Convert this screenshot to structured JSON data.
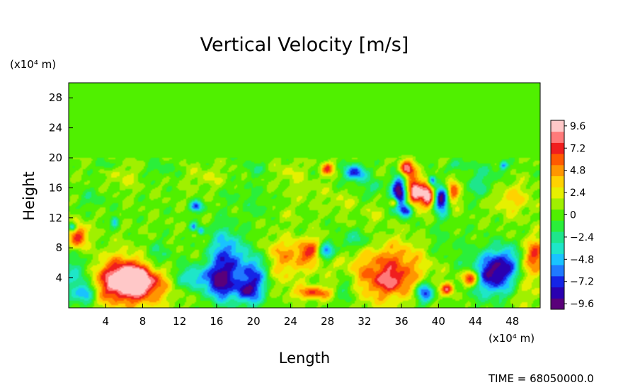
{
  "chart_data": {
    "type": "heatmap",
    "title": "Vertical Velocity [m/s]",
    "xlabel": "Length",
    "ylabel": "Height",
    "x_unit": "(x10⁴ m)",
    "y_unit": "(x10⁴ m)",
    "xlim": [
      0,
      51
    ],
    "ylim": [
      0,
      30
    ],
    "x_ticks": [
      4,
      8,
      12,
      16,
      20,
      24,
      28,
      32,
      36,
      40,
      44,
      48
    ],
    "y_ticks": [
      4,
      8,
      12,
      16,
      20,
      24,
      28
    ],
    "value_range": [
      -10.2,
      10.2
    ],
    "colorbar_ticks": [
      9.6,
      7.2,
      4.8,
      2.4,
      0,
      -2.4,
      -4.8,
      -7.2,
      -9.6
    ],
    "colormap": [
      "#5a007a",
      "#2a00b0",
      "#1424e6",
      "#1f7aff",
      "#19c3ff",
      "#1ee6c8",
      "#1ee68c",
      "#2aef3a",
      "#50f000",
      "#a0f000",
      "#e6f000",
      "#ffd200",
      "#ff9600",
      "#ff5a00",
      "#f01e1e",
      "#ff7a7a",
      "#ffc8c8"
    ],
    "background_value": 0.3,
    "features": [
      {
        "x": 6.5,
        "y": 3.5,
        "sx": 2.8,
        "sy": 2.2,
        "v": 10.5
      },
      {
        "x": 7.0,
        "y": 3.8,
        "sx": 1.6,
        "sy": 1.3,
        "v": 3.5
      },
      {
        "x": 1.0,
        "y": 3.5,
        "sx": 1.2,
        "sy": 2.5,
        "v": -5.0
      },
      {
        "x": 2.0,
        "y": 2.0,
        "sx": 0.7,
        "sy": 0.7,
        "v": -5.0
      },
      {
        "x": 1.0,
        "y": 9.5,
        "sx": 0.7,
        "sy": 1.2,
        "v": 7.5
      },
      {
        "x": 0.4,
        "y": 10.8,
        "sx": 0.3,
        "sy": 0.4,
        "v": -7.0
      },
      {
        "x": 13.5,
        "y": 4.0,
        "sx": 1.5,
        "sy": 1.2,
        "v": -5.5
      },
      {
        "x": 17.0,
        "y": 6.0,
        "sx": 1.2,
        "sy": 3.0,
        "v": -8.0
      },
      {
        "x": 16.3,
        "y": 3.0,
        "sx": 0.8,
        "sy": 1.5,
        "v": -6.0
      },
      {
        "x": 20.0,
        "y": 4.0,
        "sx": 1.0,
        "sy": 2.5,
        "v": -7.5
      },
      {
        "x": 19.0,
        "y": 2.2,
        "sx": 0.8,
        "sy": 1.0,
        "v": -5.0
      },
      {
        "x": 9.5,
        "y": 6.5,
        "sx": 1.3,
        "sy": 1.5,
        "v": -3.5
      },
      {
        "x": 23.5,
        "y": 6.0,
        "sx": 1.5,
        "sy": 2.0,
        "v": 3.5
      },
      {
        "x": 22.0,
        "y": 8.0,
        "sx": 1.5,
        "sy": 1.0,
        "v": 1.5
      },
      {
        "x": 26.5,
        "y": 7.5,
        "sx": 1.3,
        "sy": 1.2,
        "v": 6.5
      },
      {
        "x": 27.8,
        "y": 7.5,
        "sx": 0.7,
        "sy": 0.8,
        "v": -10.0
      },
      {
        "x": 26.5,
        "y": 2.0,
        "sx": 1.5,
        "sy": 0.6,
        "v": 6.0
      },
      {
        "x": 30.0,
        "y": 2.5,
        "sx": 1.0,
        "sy": 1.5,
        "v": -3.5
      },
      {
        "x": 34.0,
        "y": 4.0,
        "sx": 3.0,
        "sy": 2.5,
        "v": 5.5
      },
      {
        "x": 35.0,
        "y": 3.5,
        "sx": 1.2,
        "sy": 1.0,
        "v": 2.5
      },
      {
        "x": 36.5,
        "y": 7.0,
        "sx": 3.0,
        "sy": 2.0,
        "v": 2.5
      },
      {
        "x": 31.0,
        "y": 9.0,
        "sx": 1.5,
        "sy": 1.0,
        "v": -3.0
      },
      {
        "x": 38.5,
        "y": 2.0,
        "sx": 0.7,
        "sy": 1.0,
        "v": -8.0
      },
      {
        "x": 41.0,
        "y": 2.5,
        "sx": 0.5,
        "sy": 0.6,
        "v": 7.0
      },
      {
        "x": 43.5,
        "y": 4.0,
        "sx": 0.7,
        "sy": 0.8,
        "v": 9.0
      },
      {
        "x": 46.0,
        "y": 4.5,
        "sx": 1.8,
        "sy": 2.0,
        "v": -9.5
      },
      {
        "x": 47.5,
        "y": 6.5,
        "sx": 1.0,
        "sy": 1.5,
        "v": -4.0
      },
      {
        "x": 49.5,
        "y": 4.0,
        "sx": 1.5,
        "sy": 3.0,
        "v": 2.5
      },
      {
        "x": 50.5,
        "y": 7.0,
        "sx": 0.8,
        "sy": 1.5,
        "v": 5.5
      },
      {
        "x": 40.0,
        "y": 8.0,
        "sx": 2.0,
        "sy": 2.0,
        "v": -2.0
      },
      {
        "x": 31.0,
        "y": 18.0,
        "sx": 0.8,
        "sy": 0.8,
        "v": -8.0
      },
      {
        "x": 28.0,
        "y": 18.5,
        "sx": 0.5,
        "sy": 0.6,
        "v": 6.0
      },
      {
        "x": 36.5,
        "y": 18.5,
        "sx": 0.6,
        "sy": 0.8,
        "v": 9.0
      },
      {
        "x": 35.8,
        "y": 15.5,
        "sx": 0.6,
        "sy": 1.6,
        "v": -10.5
      },
      {
        "x": 37.5,
        "y": 15.5,
        "sx": 0.7,
        "sy": 1.4,
        "v": 10.0
      },
      {
        "x": 38.9,
        "y": 15.0,
        "sx": 0.5,
        "sy": 1.2,
        "v": 9.0
      },
      {
        "x": 40.3,
        "y": 14.5,
        "sx": 0.6,
        "sy": 1.3,
        "v": -10.0
      },
      {
        "x": 41.5,
        "y": 15.5,
        "sx": 0.5,
        "sy": 1.2,
        "v": 7.0
      },
      {
        "x": 36.5,
        "y": 13.0,
        "sx": 0.5,
        "sy": 0.6,
        "v": -8.0
      },
      {
        "x": 39.3,
        "y": 17.0,
        "sx": 0.3,
        "sy": 0.5,
        "v": -8.0
      },
      {
        "x": 35.2,
        "y": 14.0,
        "sx": 0.3,
        "sy": 0.4,
        "v": 6.0
      },
      {
        "x": 13.8,
        "y": 13.5,
        "sx": 0.5,
        "sy": 0.5,
        "v": -7.0
      },
      {
        "x": 6.0,
        "y": 17.5,
        "sx": 1.0,
        "sy": 1.2,
        "v": 1.8
      },
      {
        "x": 10.0,
        "y": 18.5,
        "sx": 1.0,
        "sy": 0.8,
        "v": -1.8
      },
      {
        "x": 15.0,
        "y": 17.5,
        "sx": 1.5,
        "sy": 1.0,
        "v": 1.5
      },
      {
        "x": 20.0,
        "y": 18.5,
        "sx": 0.8,
        "sy": 0.8,
        "v": -2.0
      },
      {
        "x": 24.0,
        "y": 18.0,
        "sx": 1.0,
        "sy": 1.0,
        "v": 1.8
      },
      {
        "x": 45.0,
        "y": 18.0,
        "sx": 1.5,
        "sy": 1.0,
        "v": -1.8
      },
      {
        "x": 48.0,
        "y": 14.5,
        "sx": 1.5,
        "sy": 1.5,
        "v": 3.0
      },
      {
        "x": 44.5,
        "y": 16.0,
        "sx": 1.0,
        "sy": 1.0,
        "v": -2.5
      },
      {
        "x": 2.5,
        "y": 14.5,
        "sx": 1.2,
        "sy": 1.0,
        "v": -1.5
      },
      {
        "x": 47.0,
        "y": 19.0,
        "sx": 0.3,
        "sy": 0.4,
        "v": -6.0
      },
      {
        "x": 5.0,
        "y": 11.5,
        "sx": 0.3,
        "sy": 0.5,
        "v": -5.0
      },
      {
        "x": 13.5,
        "y": 10.8,
        "sx": 0.25,
        "sy": 0.4,
        "v": -5.5
      },
      {
        "x": 14.3,
        "y": 10.3,
        "sx": 0.25,
        "sy": 0.4,
        "v": -5.5
      },
      {
        "x": 23.0,
        "y": 12.5,
        "sx": 1.0,
        "sy": 0.8,
        "v": 1.2
      },
      {
        "x": 33.0,
        "y": 12.5,
        "sx": 1.0,
        "sy": 1.0,
        "v": 1.2
      },
      {
        "x": 26.0,
        "y": 15.5,
        "sx": 1.5,
        "sy": 1.2,
        "v": 1.0
      },
      {
        "x": 19.0,
        "y": 15.0,
        "sx": 1.5,
        "sy": 1.0,
        "v": -1.2
      },
      {
        "x": 42.0,
        "y": 19.0,
        "sx": 0.8,
        "sy": 0.5,
        "v": -2.5
      },
      {
        "x": 33.0,
        "y": 16.0,
        "sx": 0.8,
        "sy": 0.8,
        "v": -2.5
      },
      {
        "x": 4.0,
        "y": 19.0,
        "sx": 0.6,
        "sy": 0.4,
        "v": -2.5
      },
      {
        "x": 21.0,
        "y": 13.0,
        "sx": 1.2,
        "sy": 0.8,
        "v": -1.5
      },
      {
        "x": 29.5,
        "y": 14.0,
        "sx": 1.0,
        "sy": 1.0,
        "v": 1.5
      }
    ]
  },
  "footer": {
    "time_text": "TIME = 68050000.0"
  }
}
